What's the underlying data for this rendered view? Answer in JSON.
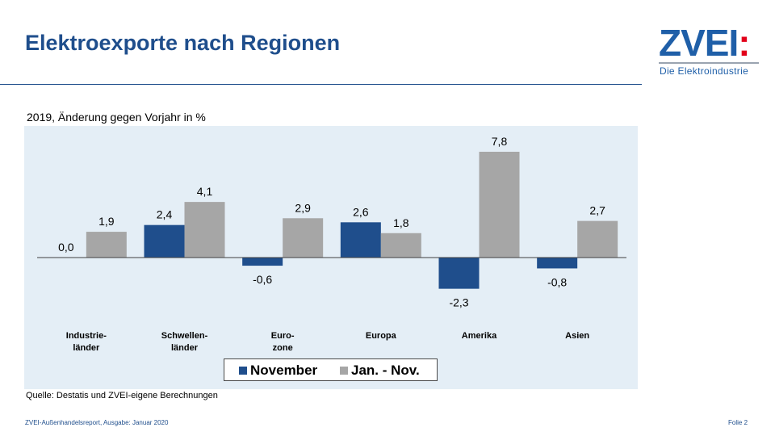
{
  "header": {
    "title": "Elektroexporte nach Regionen",
    "logo_text": "ZVEI",
    "logo_colon": ":",
    "logo_subtitle": "Die Elektroindustrie"
  },
  "chart_data": {
    "type": "bar",
    "title": "",
    "subtitle": "2019, Änderung gegen Vorjahr in %",
    "categories": [
      [
        "Industrie-",
        "länder"
      ],
      [
        "Schwellen-",
        "länder"
      ],
      [
        "Euro-",
        "zone"
      ],
      [
        "Europa"
      ],
      [
        "Amerika"
      ],
      [
        "Asien"
      ]
    ],
    "series": [
      {
        "name": "November",
        "color": "#1f4e8c",
        "values": [
          0.0,
          2.4,
          -0.6,
          2.6,
          -2.3,
          -0.8
        ],
        "labels": [
          "0,0",
          "2,4",
          "-0,6",
          "2,6",
          "-2,3",
          "-0,8"
        ]
      },
      {
        "name": "Jan. - Nov.",
        "color": "#a6a6a6",
        "values": [
          1.9,
          4.1,
          2.9,
          1.8,
          7.8,
          2.7
        ],
        "labels": [
          "1,9",
          "4,1",
          "2,9",
          "1,8",
          "7,8",
          "2,7"
        ]
      }
    ],
    "ylim": [
      -4,
      8
    ],
    "grid": false,
    "legend_position": "bottom"
  },
  "source": "Quelle: Destatis und ZVEI-eigene Berechnungen",
  "footer": {
    "left": "ZVEI-Außenhandelsreport,   Ausgabe: Januar 2020",
    "right": "Folie 2"
  }
}
